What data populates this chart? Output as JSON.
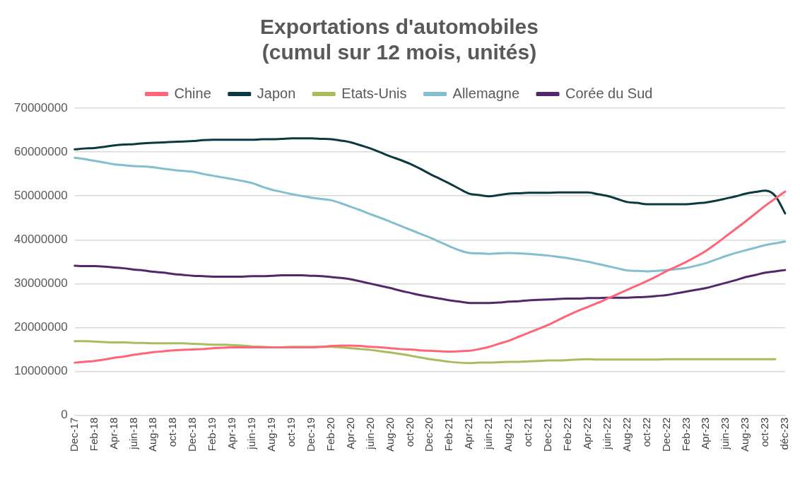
{
  "chart_data": {
    "type": "line",
    "title": "Exportations d'automobiles\n(cumul sur 12 mois, unités)",
    "categories": [
      "Dec-17",
      null,
      "Feb-18",
      null,
      "Apr-18",
      null,
      "juin-18",
      null,
      "Aug-18",
      null,
      "oct-18",
      null,
      "Dec-18",
      null,
      "Feb-19",
      null,
      "Apr-19",
      null,
      "juin-19",
      null,
      "Aug-19",
      null,
      "oct-19",
      null,
      "Dec-19",
      null,
      "Feb-20",
      null,
      "Apr-20",
      null,
      "juin-20",
      null,
      "Aug-20",
      null,
      "oct-20",
      null,
      "Dec-20",
      null,
      "Feb-21",
      null,
      "Apr-21",
      null,
      "juin-21",
      null,
      "Aug-21",
      null,
      "oct-21",
      null,
      "Dec-21",
      null,
      "Feb-22",
      null,
      "Apr-22",
      null,
      "juin-22",
      null,
      "Aug-22",
      null,
      "oct-22",
      null,
      "Dec-22",
      null,
      "Feb-23",
      null,
      "Apr-23",
      null,
      "juin-23",
      null,
      "Aug-23",
      null,
      "oct-23",
      null,
      "déc-23"
    ],
    "series": [
      {
        "name": "Chine",
        "color": "#ff6577",
        "values": [
          12000000,
          12200000,
          12400000,
          12700000,
          13100000,
          13400000,
          13800000,
          14100000,
          14400000,
          14600000,
          14800000,
          14900000,
          15000000,
          15100000,
          15300000,
          15400000,
          15500000,
          15500000,
          15500000,
          15500000,
          15500000,
          15500000,
          15500000,
          15500000,
          15500000,
          15600000,
          15800000,
          15900000,
          15900000,
          15800000,
          15600000,
          15500000,
          15300000,
          15100000,
          15000000,
          14800000,
          14700000,
          14600000,
          14500000,
          14600000,
          14700000,
          15100000,
          15600000,
          16300000,
          17000000,
          17900000,
          18800000,
          19700000,
          20600000,
          21700000,
          22800000,
          23800000,
          24700000,
          25600000,
          26600000,
          27600000,
          28600000,
          29600000,
          30600000,
          31700000,
          32900000,
          33900000,
          35000000,
          36200000,
          37500000,
          39100000,
          40800000,
          42500000,
          44200000,
          46000000,
          47800000,
          49400000,
          51000000
        ]
      },
      {
        "name": "Japon",
        "color": "#0a3a40",
        "values": [
          60600000,
          60800000,
          60900000,
          61200000,
          61500000,
          61700000,
          61800000,
          62000000,
          62100000,
          62200000,
          62300000,
          62400000,
          62500000,
          62700000,
          62800000,
          62800000,
          62800000,
          62800000,
          62800000,
          62900000,
          62900000,
          63000000,
          63100000,
          63100000,
          63100000,
          63000000,
          62900000,
          62600000,
          62200000,
          61500000,
          60800000,
          59900000,
          59000000,
          58200000,
          57300000,
          56200000,
          55000000,
          53900000,
          52800000,
          51600000,
          50500000,
          50200000,
          49900000,
          50200000,
          50500000,
          50600000,
          50700000,
          50700000,
          50700000,
          50800000,
          50800000,
          50800000,
          50800000,
          50400000,
          50000000,
          49300000,
          48600000,
          48400000,
          48100000,
          48100000,
          48100000,
          48100000,
          48100000,
          48300000,
          48500000,
          48900000,
          49400000,
          49900000,
          50500000,
          50900000,
          51200000,
          50000000,
          46000000
        ]
      },
      {
        "name": "Etats-Unis",
        "color": "#a9bd5e",
        "values": [
          16900000,
          16900000,
          16800000,
          16700000,
          16600000,
          16600000,
          16500000,
          16500000,
          16400000,
          16400000,
          16400000,
          16400000,
          16300000,
          16200000,
          16100000,
          16100000,
          16000000,
          15900000,
          15700000,
          15600000,
          15500000,
          15500000,
          15600000,
          15600000,
          15600000,
          15600000,
          15600000,
          15500000,
          15300000,
          15100000,
          14900000,
          14600000,
          14300000,
          14000000,
          13600000,
          13200000,
          12800000,
          12500000,
          12200000,
          12000000,
          11900000,
          12000000,
          12000000,
          12100000,
          12200000,
          12200000,
          12300000,
          12400000,
          12500000,
          12500000,
          12600000,
          12700000,
          12800000,
          12700000,
          12700000,
          12700000,
          12700000,
          12700000,
          12700000,
          12700000,
          12800000,
          12800000,
          12800000,
          12800000,
          12800000,
          12800000,
          12800000,
          12800000,
          12800000,
          12800000,
          12800000,
          12800000,
          null
        ]
      },
      {
        "name": "Allemagne",
        "color": "#83bfd0",
        "values": [
          58700000,
          58400000,
          58000000,
          57600000,
          57200000,
          57000000,
          56800000,
          56700000,
          56500000,
          56200000,
          55900000,
          55700000,
          55500000,
          55000000,
          54600000,
          54200000,
          53800000,
          53400000,
          52900000,
          52100000,
          51400000,
          50900000,
          50400000,
          50000000,
          49600000,
          49300000,
          49000000,
          48300000,
          47500000,
          46700000,
          45800000,
          45000000,
          44100000,
          43200000,
          42300000,
          41400000,
          40500000,
          39500000,
          38500000,
          37600000,
          37000000,
          36900000,
          36800000,
          36900000,
          37000000,
          36900000,
          36800000,
          36600000,
          36400000,
          36100000,
          35800000,
          35400000,
          35000000,
          34500000,
          34000000,
          33500000,
          33000000,
          32900000,
          32800000,
          32900000,
          33100000,
          33300000,
          33600000,
          34100000,
          34700000,
          35500000,
          36300000,
          37000000,
          37600000,
          38200000,
          38800000,
          39200000,
          39600000
        ]
      },
      {
        "name": "Corée du Sud",
        "color": "#53286a",
        "values": [
          34100000,
          34000000,
          34000000,
          33900000,
          33700000,
          33500000,
          33200000,
          33000000,
          32700000,
          32500000,
          32200000,
          32000000,
          31800000,
          31700000,
          31600000,
          31600000,
          31600000,
          31600000,
          31700000,
          31700000,
          31800000,
          31900000,
          31900000,
          31900000,
          31800000,
          31700000,
          31500000,
          31300000,
          31000000,
          30500000,
          30000000,
          29500000,
          29000000,
          28400000,
          27900000,
          27400000,
          27000000,
          26600000,
          26200000,
          25900000,
          25600000,
          25600000,
          25600000,
          25700000,
          25900000,
          26000000,
          26200000,
          26300000,
          26400000,
          26500000,
          26600000,
          26600000,
          26700000,
          26700000,
          26800000,
          26800000,
          26800000,
          26900000,
          27000000,
          27200000,
          27400000,
          27800000,
          28200000,
          28600000,
          29000000,
          29600000,
          30200000,
          30800000,
          31500000,
          32000000,
          32500000,
          32800000,
          33100000
        ]
      }
    ],
    "ylim": [
      0,
      70000000
    ],
    "yticks": [
      0,
      10000000,
      20000000,
      30000000,
      40000000,
      50000000,
      60000000,
      70000000
    ],
    "grid": "y",
    "legend": "top",
    "line_style": "solid"
  }
}
